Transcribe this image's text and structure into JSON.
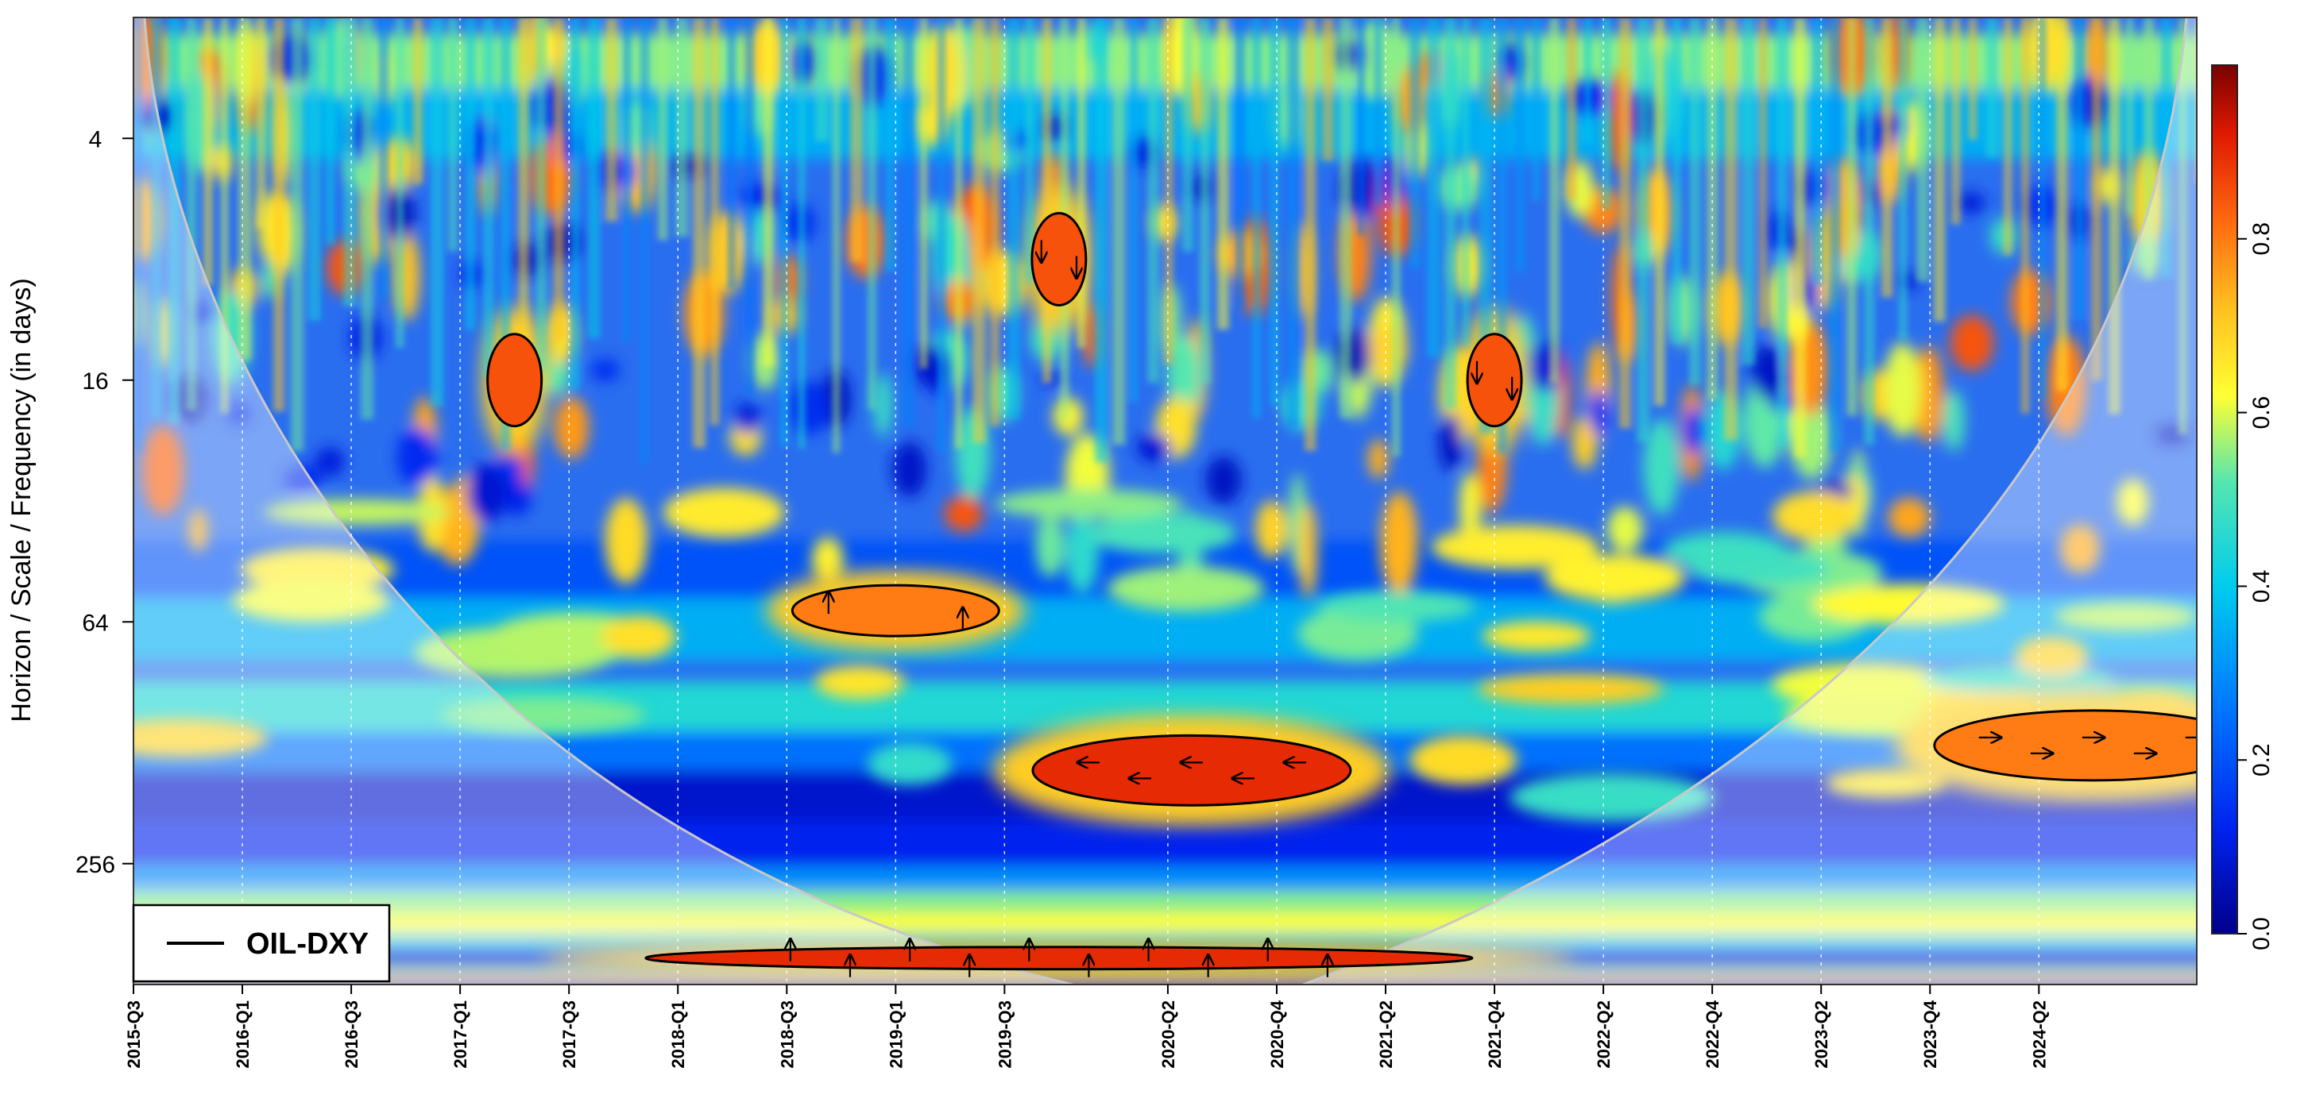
{
  "chart_data": {
    "type": "heatmap",
    "title": "",
    "xlabel": "",
    "ylabel": "Horizon / Scale / Frequency (in days)",
    "x_tick_labels": [
      "2015-Q3",
      "2016-Q1",
      "2016-Q3",
      "2017-Q1",
      "2017-Q3",
      "2018-Q1",
      "2018-Q3",
      "2019-Q1",
      "2019-Q3",
      "2020-Q2",
      "2020-Q4",
      "2021-Q2",
      "2021-Q4",
      "2022-Q2",
      "2022-Q4",
      "2023-Q2",
      "2023-Q4",
      "2024-Q2"
    ],
    "y_scale": "log2",
    "y_ticks": [
      4,
      16,
      64,
      256
    ],
    "y_range_days": [
      2,
      512
    ],
    "colorbar": {
      "ticks": [
        0.0,
        0.2,
        0.4,
        0.6,
        0.8
      ],
      "range": [
        0,
        1
      ],
      "colors": [
        "#00008b",
        "#0033ff",
        "#00bfff",
        "#40e0d0",
        "#ffff33",
        "#ffa500",
        "#ff3300",
        "#8b0000"
      ]
    },
    "legend": {
      "label": "OIL-DXY",
      "position": "bottom-left"
    },
    "significant_regions": [
      {
        "date": "2020-Q2",
        "period_days": 150,
        "coherence": 0.9,
        "phase": "left"
      },
      {
        "date": "2019-Q1",
        "period_days": 60,
        "coherence": 0.8,
        "phase": "up"
      },
      {
        "date": "2017-Q2",
        "period_days": 16,
        "coherence": 0.85
      },
      {
        "date": "2019-Q4",
        "period_days": 8,
        "coherence": 0.85,
        "phase": "down"
      },
      {
        "date": "2021-Q4",
        "period_days": 16,
        "coherence": 0.85,
        "phase": "down"
      },
      {
        "date": "2019-Q4",
        "period_days": 440,
        "coherence": 0.9,
        "phase": "up"
      },
      {
        "date": "2024-Q3",
        "period_days": 130,
        "coherence": 0.8,
        "phase": "right"
      }
    ],
    "grid": true,
    "cone_of_influence": true
  }
}
